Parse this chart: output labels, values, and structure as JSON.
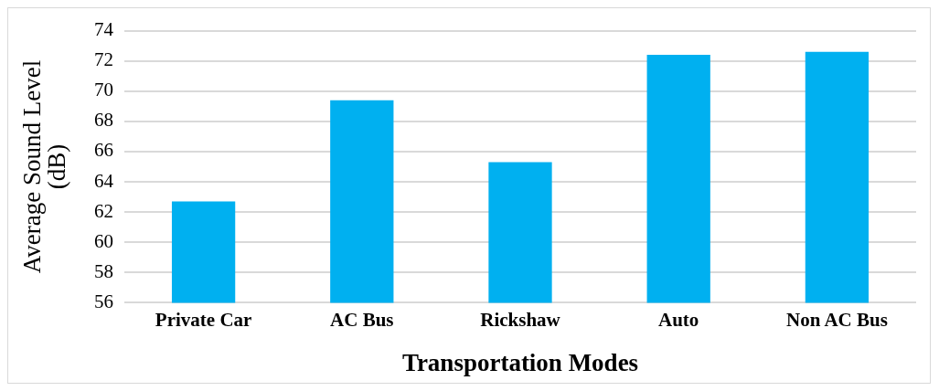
{
  "chart_data": {
    "type": "bar",
    "xlabel": "Transportation Modes",
    "ylabel": "Average Sound Level (dB)",
    "categories": [
      "Private Car",
      "AC Bus",
      "Rickshaw",
      "Auto",
      "Non AC Bus"
    ],
    "values": [
      62.7,
      69.4,
      65.3,
      72.4,
      72.6
    ],
    "color": "#00b0f0",
    "ylim": [
      56,
      74
    ],
    "yticks": [
      56,
      58,
      60,
      62,
      64,
      66,
      68,
      70,
      72,
      74
    ],
    "grid": "y"
  }
}
